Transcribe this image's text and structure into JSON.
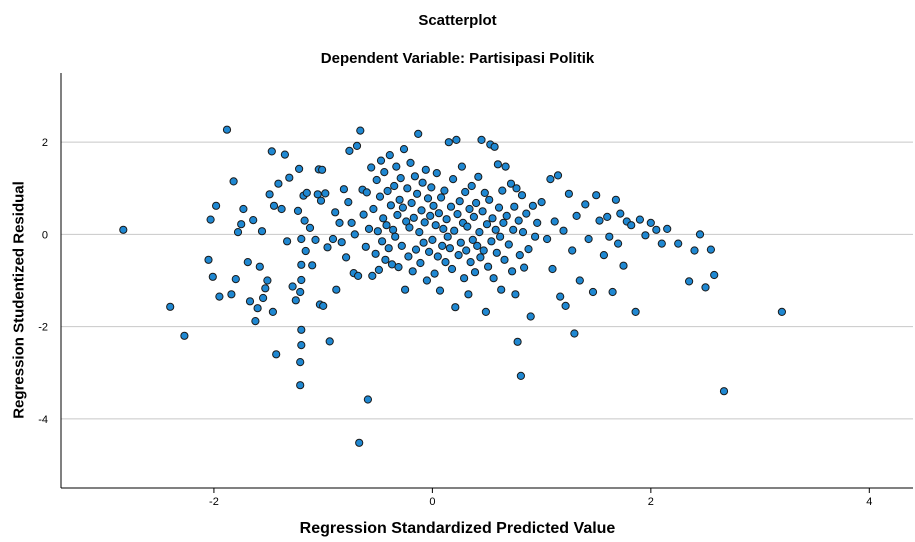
{
  "chart_data": {
    "type": "scatter",
    "title": "Scatterplot",
    "subtitle": "Dependent Variable: Partisipasi Politik",
    "xlabel": "Regression Standardized Predicted Value",
    "ylabel": "Regression Studentized Residual",
    "xlim": [
      -3.4,
      4.4
    ],
    "ylim": [
      -5.5,
      3.5
    ],
    "xticks": [
      "-2",
      "0",
      "2",
      "4"
    ],
    "yticks": [
      "2",
      "0",
      "-2",
      "-4"
    ],
    "grid": "horizontal",
    "point_color": "#1f88d2",
    "points": [
      [
        -2.83,
        0.1
      ],
      [
        -2.4,
        -1.57
      ],
      [
        -2.27,
        -2.2
      ],
      [
        -2.05,
        -0.55
      ],
      [
        -2.03,
        0.32
      ],
      [
        -2.01,
        -0.92
      ],
      [
        -1.98,
        0.62
      ],
      [
        -1.95,
        -1.35
      ],
      [
        -1.88,
        2.27
      ],
      [
        -1.84,
        -1.3
      ],
      [
        -1.82,
        1.15
      ],
      [
        -1.8,
        -0.97
      ],
      [
        -1.78,
        0.05
      ],
      [
        -1.75,
        0.22
      ],
      [
        -1.73,
        0.55
      ],
      [
        -1.69,
        -0.6
      ],
      [
        -1.67,
        -1.45
      ],
      [
        -1.64,
        0.31
      ],
      [
        -1.62,
        -1.88
      ],
      [
        -1.6,
        -1.6
      ],
      [
        -1.58,
        -0.7
      ],
      [
        -1.56,
        0.07
      ],
      [
        -1.55,
        -1.38
      ],
      [
        -1.53,
        -1.17
      ],
      [
        -1.51,
        -1.0
      ],
      [
        -1.49,
        0.87
      ],
      [
        -1.47,
        1.8
      ],
      [
        -1.46,
        -1.68
      ],
      [
        -1.45,
        0.62
      ],
      [
        -1.43,
        -2.6
      ],
      [
        -1.41,
        1.1
      ],
      [
        -1.38,
        0.55
      ],
      [
        -1.35,
        1.73
      ],
      [
        -1.33,
        -0.15
      ],
      [
        -1.31,
        1.23
      ],
      [
        -1.28,
        -1.13
      ],
      [
        -1.25,
        -1.43
      ],
      [
        -1.23,
        0.51
      ],
      [
        -1.22,
        1.42
      ],
      [
        -1.21,
        -1.25
      ],
      [
        -1.2,
        -0.1
      ],
      [
        -1.2,
        -0.66
      ],
      [
        -1.2,
        -0.99
      ],
      [
        -1.2,
        -2.07
      ],
      [
        -1.2,
        -2.4
      ],
      [
        -1.21,
        -2.77
      ],
      [
        -1.21,
        -3.27
      ],
      [
        -1.18,
        0.84
      ],
      [
        -1.17,
        0.3
      ],
      [
        -1.16,
        -0.36
      ],
      [
        -1.15,
        0.9
      ],
      [
        -1.12,
        0.14
      ],
      [
        -1.1,
        -0.67
      ],
      [
        -1.07,
        -0.12
      ],
      [
        -1.05,
        0.87
      ],
      [
        -1.04,
        1.41
      ],
      [
        -1.03,
        -1.52
      ],
      [
        -1.02,
        0.73
      ],
      [
        -1.01,
        1.4
      ],
      [
        -1.0,
        -1.55
      ],
      [
        -0.98,
        0.89
      ],
      [
        -0.96,
        -0.28
      ],
      [
        -0.94,
        -2.32
      ],
      [
        -0.91,
        -0.1
      ],
      [
        -0.89,
        0.48
      ],
      [
        -0.88,
        -1.2
      ],
      [
        -0.85,
        0.25
      ],
      [
        -0.83,
        -0.17
      ],
      [
        -0.81,
        0.98
      ],
      [
        -0.79,
        -0.5
      ],
      [
        -0.77,
        0.7
      ],
      [
        -0.76,
        1.81
      ],
      [
        -0.74,
        0.25
      ],
      [
        -0.72,
        -0.84
      ],
      [
        -0.71,
        0.0
      ],
      [
        -0.69,
        1.92
      ],
      [
        -0.68,
        -0.9
      ],
      [
        -0.67,
        -4.52
      ],
      [
        -0.66,
        2.25
      ],
      [
        -0.64,
        0.97
      ],
      [
        -0.63,
        0.43
      ],
      [
        -0.61,
        -0.27
      ],
      [
        -0.6,
        0.91
      ],
      [
        -0.59,
        -3.58
      ],
      [
        -0.58,
        0.12
      ],
      [
        -0.56,
        1.45
      ],
      [
        -0.55,
        -0.9
      ],
      [
        -0.54,
        0.55
      ],
      [
        -0.52,
        -0.42
      ],
      [
        -0.51,
        1.18
      ],
      [
        -0.5,
        0.07
      ],
      [
        -0.49,
        -0.77
      ],
      [
        -0.48,
        0.82
      ],
      [
        -0.47,
        1.6
      ],
      [
        -0.46,
        -0.15
      ],
      [
        -0.45,
        0.35
      ],
      [
        -0.44,
        1.35
      ],
      [
        -0.43,
        -0.55
      ],
      [
        -0.42,
        0.2
      ],
      [
        -0.41,
        0.94
      ],
      [
        -0.4,
        -0.3
      ],
      [
        -0.39,
        1.72
      ],
      [
        -0.38,
        0.63
      ],
      [
        -0.37,
        -0.65
      ],
      [
        -0.36,
        0.1
      ],
      [
        -0.35,
        1.05
      ],
      [
        -0.34,
        -0.05
      ],
      [
        -0.33,
        1.47
      ],
      [
        -0.32,
        0.42
      ],
      [
        -0.31,
        -0.71
      ],
      [
        -0.3,
        0.75
      ],
      [
        -0.29,
        1.22
      ],
      [
        -0.28,
        -0.25
      ],
      [
        -0.27,
        0.58
      ],
      [
        -0.26,
        1.85
      ],
      [
        -0.25,
        -1.2
      ],
      [
        -0.24,
        0.28
      ],
      [
        -0.23,
        1.0
      ],
      [
        -0.22,
        -0.48
      ],
      [
        -0.21,
        0.15
      ],
      [
        -0.2,
        1.55
      ],
      [
        -0.19,
        0.68
      ],
      [
        -0.18,
        -0.8
      ],
      [
        -0.17,
        0.36
      ],
      [
        -0.16,
        1.26
      ],
      [
        -0.15,
        -0.33
      ],
      [
        -0.14,
        0.88
      ],
      [
        -0.13,
        2.18
      ],
      [
        -0.12,
        0.05
      ],
      [
        -0.11,
        -0.62
      ],
      [
        -0.1,
        0.52
      ],
      [
        -0.09,
        1.12
      ],
      [
        -0.08,
        -0.18
      ],
      [
        -0.07,
        0.26
      ],
      [
        -0.06,
        1.4
      ],
      [
        -0.05,
        -1.0
      ],
      [
        -0.04,
        0.78
      ],
      [
        -0.03,
        -0.38
      ],
      [
        -0.02,
        0.4
      ],
      [
        -0.01,
        1.02
      ],
      [
        0.0,
        -0.12
      ],
      [
        0.01,
        0.62
      ],
      [
        0.02,
        -0.85
      ],
      [
        0.03,
        0.2
      ],
      [
        0.04,
        1.33
      ],
      [
        0.05,
        -0.48
      ],
      [
        0.06,
        0.46
      ],
      [
        0.07,
        -1.22
      ],
      [
        0.08,
        0.8
      ],
      [
        0.09,
        -0.25
      ],
      [
        0.1,
        0.12
      ],
      [
        0.11,
        0.95
      ],
      [
        0.12,
        -0.6
      ],
      [
        0.13,
        0.33
      ],
      [
        0.14,
        -0.05
      ],
      [
        0.15,
        2.0
      ],
      [
        0.16,
        -0.3
      ],
      [
        0.17,
        0.6
      ],
      [
        0.18,
        -0.75
      ],
      [
        0.19,
        1.2
      ],
      [
        0.2,
        0.08
      ],
      [
        0.21,
        -1.58
      ],
      [
        0.22,
        2.05
      ],
      [
        0.23,
        0.44
      ],
      [
        0.24,
        -0.45
      ],
      [
        0.25,
        0.72
      ],
      [
        0.26,
        -0.18
      ],
      [
        0.27,
        1.47
      ],
      [
        0.28,
        0.25
      ],
      [
        0.29,
        -0.95
      ],
      [
        0.3,
        0.92
      ],
      [
        0.31,
        -0.35
      ],
      [
        0.32,
        0.17
      ],
      [
        0.33,
        -1.3
      ],
      [
        0.34,
        0.55
      ],
      [
        0.35,
        -0.6
      ],
      [
        0.36,
        1.05
      ],
      [
        0.37,
        -0.12
      ],
      [
        0.38,
        0.38
      ],
      [
        0.39,
        -0.82
      ],
      [
        0.4,
        0.68
      ],
      [
        0.41,
        -0.25
      ],
      [
        0.42,
        1.25
      ],
      [
        0.43,
        0.05
      ],
      [
        0.44,
        -0.5
      ],
      [
        0.45,
        2.05
      ],
      [
        0.46,
        0.5
      ],
      [
        0.47,
        -0.35
      ],
      [
        0.48,
        0.9
      ],
      [
        0.49,
        -1.68
      ],
      [
        0.5,
        0.22
      ],
      [
        0.51,
        -0.7
      ],
      [
        0.52,
        0.75
      ],
      [
        0.53,
        1.95
      ],
      [
        0.54,
        -0.15
      ],
      [
        0.55,
        0.35
      ],
      [
        0.56,
        -0.95
      ],
      [
        0.57,
        1.9
      ],
      [
        0.58,
        0.1
      ],
      [
        0.59,
        -0.4
      ],
      [
        0.6,
        1.52
      ],
      [
        0.61,
        0.58
      ],
      [
        0.62,
        -0.05
      ],
      [
        0.63,
        -1.2
      ],
      [
        0.64,
        0.95
      ],
      [
        0.65,
        0.25
      ],
      [
        0.66,
        -0.55
      ],
      [
        0.67,
        1.47
      ],
      [
        0.68,
        0.4
      ],
      [
        0.7,
        -0.22
      ],
      [
        0.72,
        1.1
      ],
      [
        0.73,
        -0.8
      ],
      [
        0.74,
        0.1
      ],
      [
        0.75,
        0.6
      ],
      [
        0.76,
        -1.3
      ],
      [
        0.77,
        1.0
      ],
      [
        0.78,
        -2.33
      ],
      [
        0.79,
        0.3
      ],
      [
        0.8,
        -0.45
      ],
      [
        0.81,
        -3.07
      ],
      [
        0.82,
        0.85
      ],
      [
        0.83,
        0.05
      ],
      [
        0.84,
        -0.72
      ],
      [
        0.86,
        0.45
      ],
      [
        0.88,
        -0.32
      ],
      [
        0.9,
        -1.78
      ],
      [
        0.92,
        0.62
      ],
      [
        0.94,
        -0.05
      ],
      [
        0.96,
        0.25
      ],
      [
        1.0,
        0.7
      ],
      [
        1.05,
        -0.1
      ],
      [
        1.08,
        1.2
      ],
      [
        1.1,
        -0.75
      ],
      [
        1.12,
        0.28
      ],
      [
        1.15,
        1.28
      ],
      [
        1.17,
        -1.35
      ],
      [
        1.2,
        0.08
      ],
      [
        1.22,
        -1.55
      ],
      [
        1.25,
        0.88
      ],
      [
        1.28,
        -0.35
      ],
      [
        1.3,
        -2.15
      ],
      [
        1.32,
        0.4
      ],
      [
        1.35,
        -1.0
      ],
      [
        1.4,
        0.65
      ],
      [
        1.43,
        -0.1
      ],
      [
        1.47,
        -1.25
      ],
      [
        1.5,
        0.85
      ],
      [
        1.53,
        0.3
      ],
      [
        1.57,
        -0.45
      ],
      [
        1.6,
        0.38
      ],
      [
        1.62,
        -0.05
      ],
      [
        1.65,
        -1.25
      ],
      [
        1.68,
        0.75
      ],
      [
        1.7,
        -0.2
      ],
      [
        1.72,
        0.45
      ],
      [
        1.75,
        -0.68
      ],
      [
        1.78,
        0.28
      ],
      [
        1.82,
        0.2
      ],
      [
        1.86,
        -1.68
      ],
      [
        1.9,
        0.32
      ],
      [
        1.95,
        -0.02
      ],
      [
        2.0,
        0.25
      ],
      [
        2.05,
        0.1
      ],
      [
        2.1,
        -0.2
      ],
      [
        2.15,
        0.12
      ],
      [
        2.25,
        -0.2
      ],
      [
        2.35,
        -1.02
      ],
      [
        2.4,
        -0.35
      ],
      [
        2.45,
        0.0
      ],
      [
        2.5,
        -1.15
      ],
      [
        2.55,
        -0.33
      ],
      [
        2.58,
        -0.88
      ],
      [
        2.67,
        -3.4
      ],
      [
        3.2,
        -1.68
      ]
    ]
  }
}
